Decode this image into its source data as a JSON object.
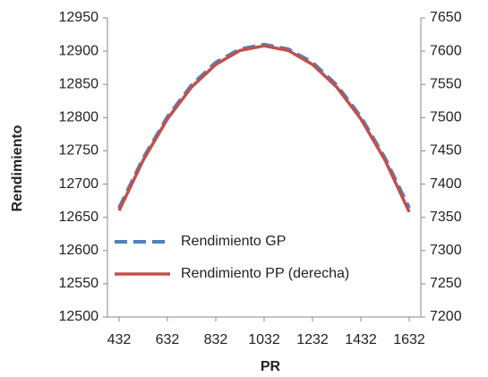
{
  "chart_data": {
    "type": "line",
    "x_label": "PR",
    "y_label": "Rendimiento",
    "x": [
      432,
      532,
      632,
      732,
      832,
      932,
      1032,
      1132,
      1232,
      1332,
      1432,
      1532,
      1632
    ],
    "series": [
      {
        "name": "Rendimiento GP",
        "color": "#4f81bd",
        "dashed": true,
        "values": [
          12664,
          12739,
          12801,
          12849,
          12883,
          12903,
          12910,
          12903,
          12883,
          12849,
          12801,
          12739,
          12664
        ]
      },
      {
        "name": "Rendimiento PP (derecha)",
        "color": "#c0504d",
        "axis": "y2",
        "values": [
          7360,
          7436,
          7498,
          7546,
          7580,
          7601,
          7608,
          7601,
          7580,
          7546,
          7498,
          7436,
          7358
        ]
      }
    ],
    "xlim": [
      384,
      1680
    ],
    "xticks": [
      432,
      632,
      832,
      1032,
      1232,
      1432,
      1632
    ],
    "ylim": [
      12500,
      12950
    ],
    "yticks": [
      12500,
      12550,
      12600,
      12650,
      12700,
      12750,
      12800,
      12850,
      12900,
      12950
    ],
    "y2lim": [
      7200,
      7650
    ],
    "y2ticks": [
      7200,
      7250,
      7300,
      7350,
      7400,
      7450,
      7500,
      7550,
      7600,
      7650
    ],
    "grid": false,
    "legend": "lower left"
  }
}
